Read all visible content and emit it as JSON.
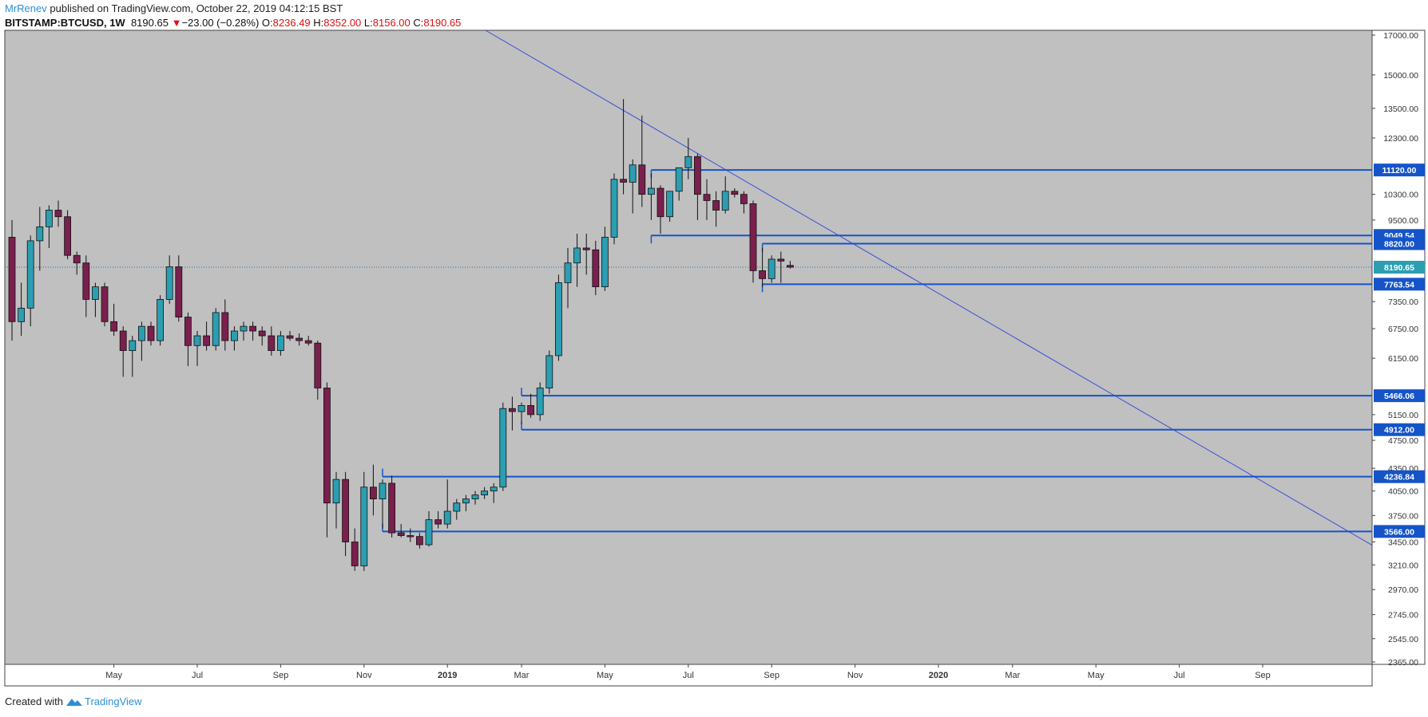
{
  "header": {
    "author": "MrRenev",
    "published_text": "published on TradingView.com, October 22, 2019 04:12:15 BST"
  },
  "symbol_line": {
    "symbol": "BITSTAMP:BTCUSD, 1W",
    "last": "8190.65",
    "change": "−23.00 (−0.28%)",
    "o_label": "O:",
    "o": "8236.49",
    "h_label": "H:",
    "h": "8352.00",
    "l_label": "L:",
    "l": "8156.00",
    "c_label": "C:",
    "c": "8190.65"
  },
  "footer": {
    "created_with": "Created with",
    "brand": "TradingView"
  },
  "colors": {
    "background": "#c0c0c0",
    "up": "#2b9eb2",
    "down": "#7a1f4e",
    "level_line": "#1554c8",
    "trend_line": "#3a4fd8",
    "price_line": "#1f6fb8"
  },
  "chart_data": {
    "type": "candlestick",
    "timeframe": "1W",
    "symbol": "BITSTAMP:BTCUSD",
    "y_scale": "log",
    "ylim": [
      2365,
      17000
    ],
    "y_ticks": [
      "17000.00",
      "15000.00",
      "13500.00",
      "12300.00",
      "10300.00",
      "9500.00",
      "7350.00",
      "6750.00",
      "6150.00",
      "5150.00",
      "4750.00",
      "4350.00",
      "4050.00",
      "3750.00",
      "3450.00",
      "3210.00",
      "2970.00",
      "2745.00",
      "2545.00",
      "2365.00"
    ],
    "x_ticks": [
      {
        "label": "May",
        "week": 11
      },
      {
        "label": "Jul",
        "week": 20
      },
      {
        "label": "Sep",
        "week": 29
      },
      {
        "label": "Nov",
        "week": 38
      },
      {
        "label": "2019",
        "week": 47
      },
      {
        "label": "Mar",
        "week": 55
      },
      {
        "label": "May",
        "week": 64
      },
      {
        "label": "Jul",
        "week": 73
      },
      {
        "label": "Sep",
        "week": 82
      },
      {
        "label": "Nov",
        "week": 91
      },
      {
        "label": "2020",
        "week": 100
      },
      {
        "label": "Mar",
        "week": 108
      },
      {
        "label": "May",
        "week": 117
      },
      {
        "label": "Jul",
        "week": 126
      },
      {
        "label": "Sep",
        "week": 135
      }
    ],
    "candles": [
      {
        "o": 9000,
        "h": 9500,
        "l": 6500,
        "c": 6900
      },
      {
        "o": 6900,
        "h": 7800,
        "l": 6600,
        "c": 7200
      },
      {
        "o": 7200,
        "h": 9050,
        "l": 6800,
        "c": 8900
      },
      {
        "o": 8900,
        "h": 9900,
        "l": 8100,
        "c": 9300
      },
      {
        "o": 9300,
        "h": 9950,
        "l": 8700,
        "c": 9800
      },
      {
        "o": 9800,
        "h": 10100,
        "l": 9300,
        "c": 9600
      },
      {
        "o": 9600,
        "h": 9800,
        "l": 8400,
        "c": 8500
      },
      {
        "o": 8500,
        "h": 8600,
        "l": 8000,
        "c": 8300
      },
      {
        "o": 8300,
        "h": 8500,
        "l": 7000,
        "c": 7400
      },
      {
        "o": 7400,
        "h": 7800,
        "l": 7000,
        "c": 7700
      },
      {
        "o": 7700,
        "h": 7800,
        "l": 6800,
        "c": 6900
      },
      {
        "o": 6900,
        "h": 7300,
        "l": 6600,
        "c": 6700
      },
      {
        "o": 6700,
        "h": 6800,
        "l": 5800,
        "c": 6300
      },
      {
        "o": 6300,
        "h": 6600,
        "l": 5800,
        "c": 6500
      },
      {
        "o": 6500,
        "h": 6900,
        "l": 6100,
        "c": 6800
      },
      {
        "o": 6800,
        "h": 6900,
        "l": 6400,
        "c": 6500
      },
      {
        "o": 6500,
        "h": 7500,
        "l": 6400,
        "c": 7400
      },
      {
        "o": 7400,
        "h": 8500,
        "l": 7300,
        "c": 8200
      },
      {
        "o": 8200,
        "h": 8500,
        "l": 6900,
        "c": 7000
      },
      {
        "o": 7000,
        "h": 7100,
        "l": 6000,
        "c": 6400
      },
      {
        "o": 6400,
        "h": 6700,
        "l": 6000,
        "c": 6600
      },
      {
        "o": 6600,
        "h": 6900,
        "l": 6300,
        "c": 6400
      },
      {
        "o": 6400,
        "h": 7200,
        "l": 6300,
        "c": 7100
      },
      {
        "o": 7100,
        "h": 7400,
        "l": 6300,
        "c": 6500
      },
      {
        "o": 6500,
        "h": 6800,
        "l": 6300,
        "c": 6700
      },
      {
        "o": 6700,
        "h": 6900,
        "l": 6500,
        "c": 6800
      },
      {
        "o": 6800,
        "h": 6900,
        "l": 6500,
        "c": 6700
      },
      {
        "o": 6700,
        "h": 6800,
        "l": 6400,
        "c": 6600
      },
      {
        "o": 6600,
        "h": 6800,
        "l": 6200,
        "c": 6300
      },
      {
        "o": 6300,
        "h": 6700,
        "l": 6200,
        "c": 6600
      },
      {
        "o": 6600,
        "h": 6700,
        "l": 6500,
        "c": 6550
      },
      {
        "o": 6550,
        "h": 6650,
        "l": 6400,
        "c": 6500
      },
      {
        "o": 6500,
        "h": 6600,
        "l": 6400,
        "c": 6450
      },
      {
        "o": 6450,
        "h": 6500,
        "l": 5400,
        "c": 5600
      },
      {
        "o": 5600,
        "h": 5700,
        "l": 3500,
        "c": 3900
      },
      {
        "o": 3900,
        "h": 4300,
        "l": 3600,
        "c": 4200
      },
      {
        "o": 4200,
        "h": 4300,
        "l": 3300,
        "c": 3450
      },
      {
        "o": 3450,
        "h": 3600,
        "l": 3150,
        "c": 3200
      },
      {
        "o": 3200,
        "h": 4300,
        "l": 3150,
        "c": 4100
      },
      {
        "o": 4100,
        "h": 4400,
        "l": 3750,
        "c": 3950
      },
      {
        "o": 3950,
        "h": 4200,
        "l": 3600,
        "c": 4150
      },
      {
        "o": 4150,
        "h": 4250,
        "l": 3500,
        "c": 3550
      },
      {
        "o": 3550,
        "h": 3650,
        "l": 3500,
        "c": 3520
      },
      {
        "o": 3520,
        "h": 3600,
        "l": 3450,
        "c": 3510
      },
      {
        "o": 3510,
        "h": 3550,
        "l": 3380,
        "c": 3420
      },
      {
        "o": 3420,
        "h": 3800,
        "l": 3400,
        "c": 3700
      },
      {
        "o": 3700,
        "h": 3800,
        "l": 3600,
        "c": 3650
      },
      {
        "o": 3650,
        "h": 4200,
        "l": 3600,
        "c": 3800
      },
      {
        "o": 3800,
        "h": 3950,
        "l": 3700,
        "c": 3900
      },
      {
        "o": 3900,
        "h": 4000,
        "l": 3800,
        "c": 3950
      },
      {
        "o": 3950,
        "h": 4050,
        "l": 3880,
        "c": 4000
      },
      {
        "o": 4000,
        "h": 4100,
        "l": 3950,
        "c": 4050
      },
      {
        "o": 4050,
        "h": 4150,
        "l": 3900,
        "c": 4100
      },
      {
        "o": 4100,
        "h": 5350,
        "l": 4050,
        "c": 5250
      },
      {
        "o": 5250,
        "h": 5450,
        "l": 4900,
        "c": 5200
      },
      {
        "o": 5200,
        "h": 5350,
        "l": 5000,
        "c": 5300
      },
      {
        "o": 5300,
        "h": 5500,
        "l": 5100,
        "c": 5150
      },
      {
        "o": 5150,
        "h": 5700,
        "l": 5050,
        "c": 5600
      },
      {
        "o": 5600,
        "h": 6300,
        "l": 5500,
        "c": 6200
      },
      {
        "o": 6200,
        "h": 8000,
        "l": 6100,
        "c": 7800
      },
      {
        "o": 7800,
        "h": 8700,
        "l": 7200,
        "c": 8300
      },
      {
        "o": 8300,
        "h": 9100,
        "l": 7700,
        "c": 8700
      },
      {
        "o": 8700,
        "h": 9100,
        "l": 8000,
        "c": 8650
      },
      {
        "o": 8650,
        "h": 8900,
        "l": 7500,
        "c": 7700
      },
      {
        "o": 7700,
        "h": 9300,
        "l": 7600,
        "c": 9000
      },
      {
        "o": 9000,
        "h": 11000,
        "l": 8800,
        "c": 10800
      },
      {
        "o": 10800,
        "h": 13900,
        "l": 10300,
        "c": 10700
      },
      {
        "o": 10700,
        "h": 11500,
        "l": 9700,
        "c": 11300
      },
      {
        "o": 11300,
        "h": 13200,
        "l": 9900,
        "c": 10300
      },
      {
        "o": 10300,
        "h": 11000,
        "l": 9500,
        "c": 10500
      },
      {
        "o": 10500,
        "h": 10600,
        "l": 9100,
        "c": 9600
      },
      {
        "o": 9600,
        "h": 10300,
        "l": 9450,
        "c": 10400
      },
      {
        "o": 10400,
        "h": 11100,
        "l": 10100,
        "c": 11200
      },
      {
        "o": 11200,
        "h": 12300,
        "l": 10800,
        "c": 11600
      },
      {
        "o": 11600,
        "h": 11700,
        "l": 9500,
        "c": 10300
      },
      {
        "o": 10300,
        "h": 10800,
        "l": 9500,
        "c": 10100
      },
      {
        "o": 10100,
        "h": 10400,
        "l": 9300,
        "c": 9800
      },
      {
        "o": 9800,
        "h": 10900,
        "l": 9700,
        "c": 10400
      },
      {
        "o": 10400,
        "h": 10500,
        "l": 10200,
        "c": 10300
      },
      {
        "o": 10300,
        "h": 10400,
        "l": 9700,
        "c": 10000
      },
      {
        "o": 10000,
        "h": 10100,
        "l": 7800,
        "c": 8100
      },
      {
        "o": 8100,
        "h": 8700,
        "l": 7700,
        "c": 7900
      },
      {
        "o": 7900,
        "h": 8500,
        "l": 7800,
        "c": 8400
      },
      {
        "o": 8400,
        "h": 8600,
        "l": 7800,
        "c": 8350
      },
      {
        "o": 8236.49,
        "h": 8352,
        "l": 8156,
        "c": 8190.65
      }
    ],
    "levels": [
      {
        "label": "11120.00",
        "value": 11120,
        "start_week": 69
      },
      {
        "label": "9049.54",
        "value": 9049.54,
        "start_week": 69
      },
      {
        "label": "8820.00",
        "value": 8820,
        "start_week": 81
      },
      {
        "label": "7763.54",
        "value": 7763.54,
        "start_week": 81
      },
      {
        "label": "5466.06",
        "value": 5466.06,
        "start_week": 55
      },
      {
        "label": "4912.00",
        "value": 4912,
        "start_week": 55
      },
      {
        "label": "4236.84",
        "value": 4236.84,
        "start_week": 40
      },
      {
        "label": "3566.00",
        "value": 3566,
        "start_week": 40
      }
    ],
    "current_price": {
      "label": "8190.65",
      "value": 8190.65
    },
    "trendline": [
      {
        "week": 52,
        "price": 17000
      },
      {
        "week": 130,
        "price": 4540
      }
    ]
  }
}
